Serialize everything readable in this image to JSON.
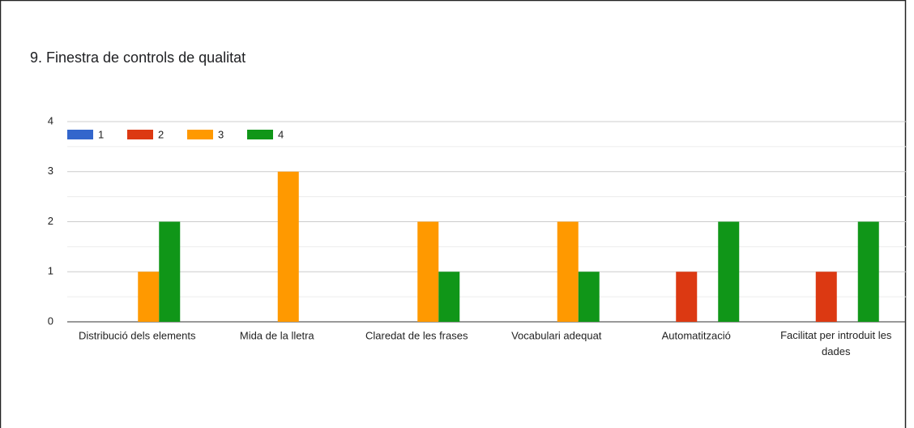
{
  "chart_data": {
    "type": "bar",
    "title": "9. Finestra de controls de qualitat",
    "categories": [
      "Distribució dels elements",
      "Mida de la lletra",
      "Claredat de les frases",
      "Vocabulari adequat",
      "Automatització",
      "Facilitat per introduit les dades"
    ],
    "series": [
      {
        "name": "1",
        "color": "#3366cc",
        "values": [
          0,
          0,
          0,
          0,
          0,
          0
        ]
      },
      {
        "name": "2",
        "color": "#dc3912",
        "values": [
          0,
          0,
          0,
          0,
          1,
          1
        ]
      },
      {
        "name": "3",
        "color": "#ff9900",
        "values": [
          1,
          3,
          2,
          2,
          0,
          0
        ]
      },
      {
        "name": "4",
        "color": "#109618",
        "values": [
          2,
          0,
          1,
          1,
          2,
          2
        ]
      }
    ],
    "ylim": [
      0,
      4
    ],
    "yticks": [
      0,
      1,
      2,
      3,
      4
    ],
    "yminorticks": [
      0.5,
      1.5,
      2.5,
      3.5
    ],
    "grid": true,
    "legend": "top-left"
  }
}
